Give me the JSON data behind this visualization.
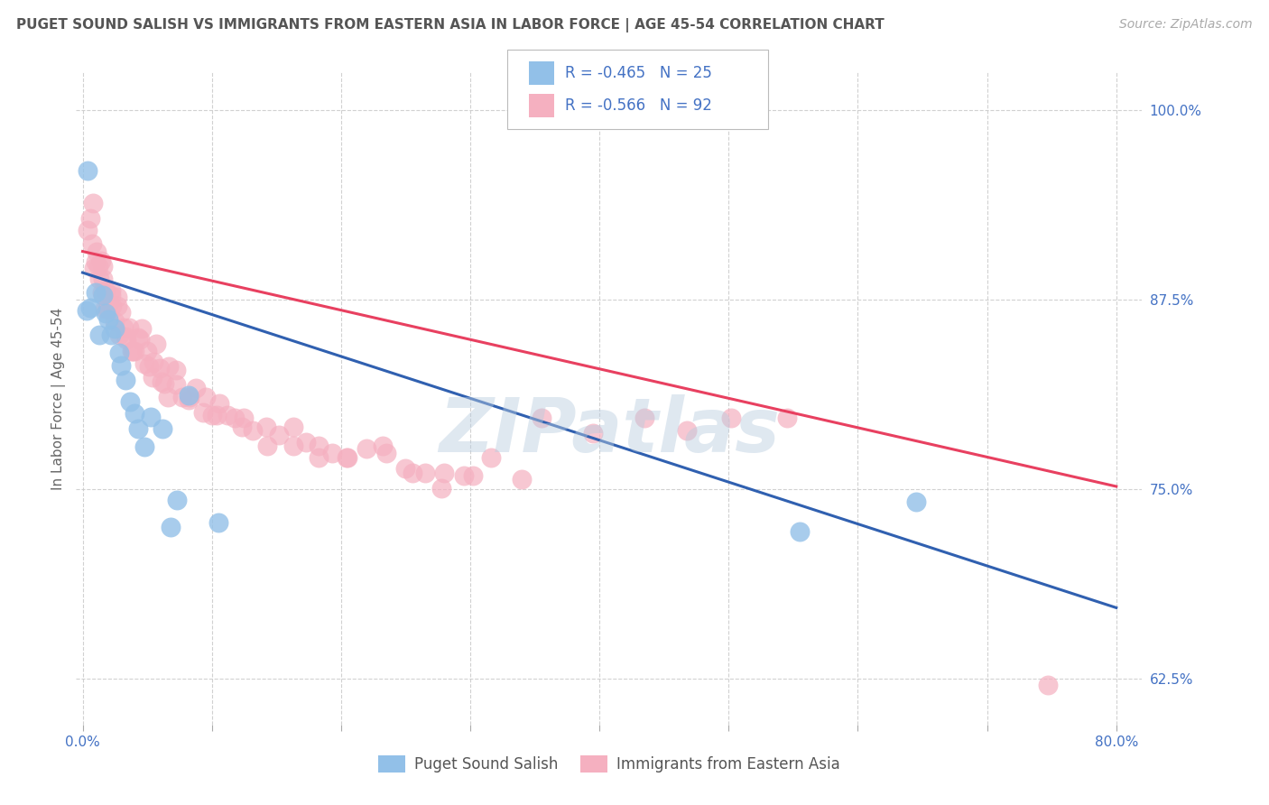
{
  "title": "PUGET SOUND SALISH VS IMMIGRANTS FROM EASTERN ASIA IN LABOR FORCE | AGE 45-54 CORRELATION CHART",
  "source_text": "Source: ZipAtlas.com",
  "ylabel": "In Labor Force | Age 45-54",
  "xlim": [
    -0.005,
    0.82
  ],
  "ylim": [
    0.595,
    1.025
  ],
  "xtick_positions": [
    0.0,
    0.1,
    0.2,
    0.3,
    0.4,
    0.5,
    0.6,
    0.7,
    0.8
  ],
  "ytick_positions": [
    0.625,
    0.75,
    0.875,
    1.0
  ],
  "ytick_labels": [
    "62.5%",
    "75.0%",
    "87.5%",
    "100.0%"
  ],
  "legend_R_blue": "-0.465",
  "legend_N_blue": "25",
  "legend_R_pink": "-0.566",
  "legend_N_pink": "92",
  "legend_label_blue": "Puget Sound Salish",
  "legend_label_pink": "Immigrants from Eastern Asia",
  "blue_scatter_color": "#92C0E8",
  "pink_scatter_color": "#F5B0C0",
  "blue_line_color": "#3060B0",
  "pink_line_color": "#E84060",
  "blue_scatter_x": [
    0.003,
    0.006,
    0.01,
    0.013,
    0.016,
    0.018,
    0.02,
    0.022,
    0.025,
    0.028,
    0.03,
    0.033,
    0.037,
    0.04,
    0.043,
    0.048,
    0.053,
    0.062,
    0.068,
    0.073,
    0.082,
    0.105,
    0.555,
    0.645,
    0.004
  ],
  "blue_scatter_y": [
    0.868,
    0.87,
    0.88,
    0.852,
    0.878,
    0.866,
    0.862,
    0.852,
    0.856,
    0.84,
    0.832,
    0.822,
    0.808,
    0.8,
    0.79,
    0.778,
    0.798,
    0.79,
    0.725,
    0.743,
    0.812,
    0.728,
    0.722,
    0.742,
    0.96
  ],
  "pink_scatter_x": [
    0.004,
    0.006,
    0.007,
    0.009,
    0.01,
    0.012,
    0.013,
    0.014,
    0.015,
    0.016,
    0.017,
    0.018,
    0.019,
    0.02,
    0.022,
    0.023,
    0.025,
    0.027,
    0.028,
    0.03,
    0.032,
    0.034,
    0.036,
    0.038,
    0.04,
    0.043,
    0.046,
    0.048,
    0.051,
    0.054,
    0.057,
    0.06,
    0.063,
    0.067,
    0.072,
    0.077,
    0.082,
    0.088,
    0.095,
    0.1,
    0.106,
    0.112,
    0.118,
    0.125,
    0.132,
    0.142,
    0.152,
    0.163,
    0.173,
    0.183,
    0.193,
    0.205,
    0.22,
    0.235,
    0.25,
    0.265,
    0.28,
    0.295,
    0.316,
    0.34,
    0.008,
    0.011,
    0.016,
    0.022,
    0.027,
    0.033,
    0.039,
    0.044,
    0.05,
    0.055,
    0.061,
    0.066,
    0.072,
    0.083,
    0.093,
    0.104,
    0.123,
    0.143,
    0.163,
    0.183,
    0.204,
    0.232,
    0.255,
    0.278,
    0.302,
    0.355,
    0.395,
    0.435,
    0.468,
    0.502,
    0.545,
    0.747
  ],
  "pink_scatter_y": [
    0.921,
    0.929,
    0.912,
    0.896,
    0.9,
    0.897,
    0.889,
    0.901,
    0.88,
    0.897,
    0.869,
    0.881,
    0.869,
    0.873,
    0.878,
    0.871,
    0.861,
    0.877,
    0.852,
    0.867,
    0.857,
    0.849,
    0.857,
    0.841,
    0.841,
    0.85,
    0.856,
    0.833,
    0.831,
    0.824,
    0.846,
    0.83,
    0.82,
    0.831,
    0.819,
    0.811,
    0.809,
    0.817,
    0.811,
    0.799,
    0.807,
    0.799,
    0.797,
    0.797,
    0.789,
    0.791,
    0.786,
    0.791,
    0.781,
    0.779,
    0.774,
    0.771,
    0.777,
    0.774,
    0.764,
    0.761,
    0.761,
    0.759,
    0.771,
    0.757,
    0.939,
    0.907,
    0.889,
    0.881,
    0.871,
    0.851,
    0.841,
    0.849,
    0.841,
    0.834,
    0.821,
    0.811,
    0.829,
    0.811,
    0.801,
    0.799,
    0.791,
    0.779,
    0.779,
    0.771,
    0.771,
    0.779,
    0.761,
    0.751,
    0.759,
    0.797,
    0.787,
    0.797,
    0.789,
    0.797,
    0.797,
    0.621
  ],
  "blue_line_x": [
    0.0,
    0.8
  ],
  "blue_line_y": [
    0.893,
    0.672
  ],
  "pink_line_x": [
    0.0,
    0.8
  ],
  "pink_line_y": [
    0.907,
    0.752
  ],
  "watermark": "ZIPatlas",
  "bg_color": "#FFFFFF",
  "grid_color": "#CCCCCC",
  "tick_color": "#4472C4",
  "title_color": "#555555"
}
